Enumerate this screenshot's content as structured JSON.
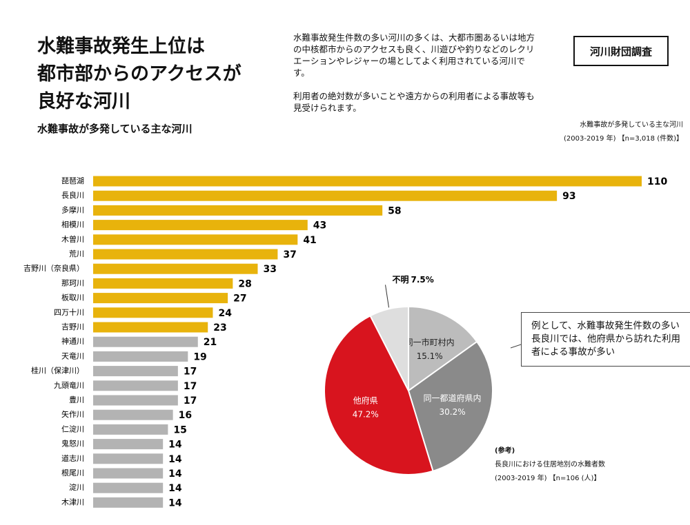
{
  "header": {
    "title_lines": [
      "水難事故発生上位は",
      "都市部からのアクセスが",
      "良好な河川"
    ],
    "description": [
      "水難事故発生件数の多い河川の多くは、大都市圏あるいは地方の中核都市からのアクセスも良く、川遊びや釣りなどのレクリエーションやレジャーの場としてよく利用されている河川です。",
      "利用者の絶対数が多いことや遠方からの利用者による事故等も見受けられます。"
    ],
    "badge": "河川財団調査"
  },
  "chart_data": [
    {
      "type": "bar",
      "subtitle": "水難事故が多発している主な河川",
      "caption": [
        "水難事故が多発している主な河川",
        "(2003-2019 年) 【n=3,018 (件数)】"
      ],
      "categories": [
        "琵琶湖",
        "長良川",
        "多摩川",
        "相模川",
        "木曽川",
        "荒川",
        "吉野川（奈良県）",
        "那珂川",
        "板取川",
        "四万十川",
        "吉野川",
        "神通川",
        "天竜川",
        "桂川（保津川）",
        "九頭竜川",
        "豊川",
        "矢作川",
        "仁淀川",
        "鬼怒川",
        "道志川",
        "根尾川",
        "淀川",
        "木津川"
      ],
      "values": [
        110,
        93,
        58,
        43,
        41,
        37,
        33,
        28,
        27,
        24,
        23,
        21,
        19,
        17,
        17,
        17,
        16,
        15,
        14,
        14,
        14,
        14,
        14
      ],
      "colors": [
        "#e8b30c",
        "#e8b30c",
        "#e8b30c",
        "#e8b30c",
        "#e8b30c",
        "#e8b30c",
        "#e8b30c",
        "#e8b30c",
        "#e8b30c",
        "#e8b30c",
        "#e8b30c",
        "#b3b3b3",
        "#b3b3b3",
        "#b3b3b3",
        "#b3b3b3",
        "#b3b3b3",
        "#b3b3b3",
        "#b3b3b3",
        "#b3b3b3",
        "#b3b3b3",
        "#b3b3b3",
        "#b3b3b3",
        "#b3b3b3"
      ]
    },
    {
      "type": "pie",
      "caption": [
        "(参考)",
        "長良川における住居地別の水難者数",
        "(2003-2019 年) 【n=106 (人)】"
      ],
      "categories": [
        "同一市町村内",
        "同一都道府県内",
        "他府県",
        "不明"
      ],
      "values": [
        15.1,
        30.2,
        47.2,
        7.5
      ],
      "value_labels": [
        "15.1%",
        "30.2%",
        "47.2%",
        "7.5%"
      ],
      "colors": [
        "#bcbcbc",
        "#8a8a8a",
        "#d8141e",
        "#dedede"
      ],
      "annotation": "例として、水難事故発生件数の多い長良川では、他府県から訪れた利用者による事故が多い"
    }
  ]
}
